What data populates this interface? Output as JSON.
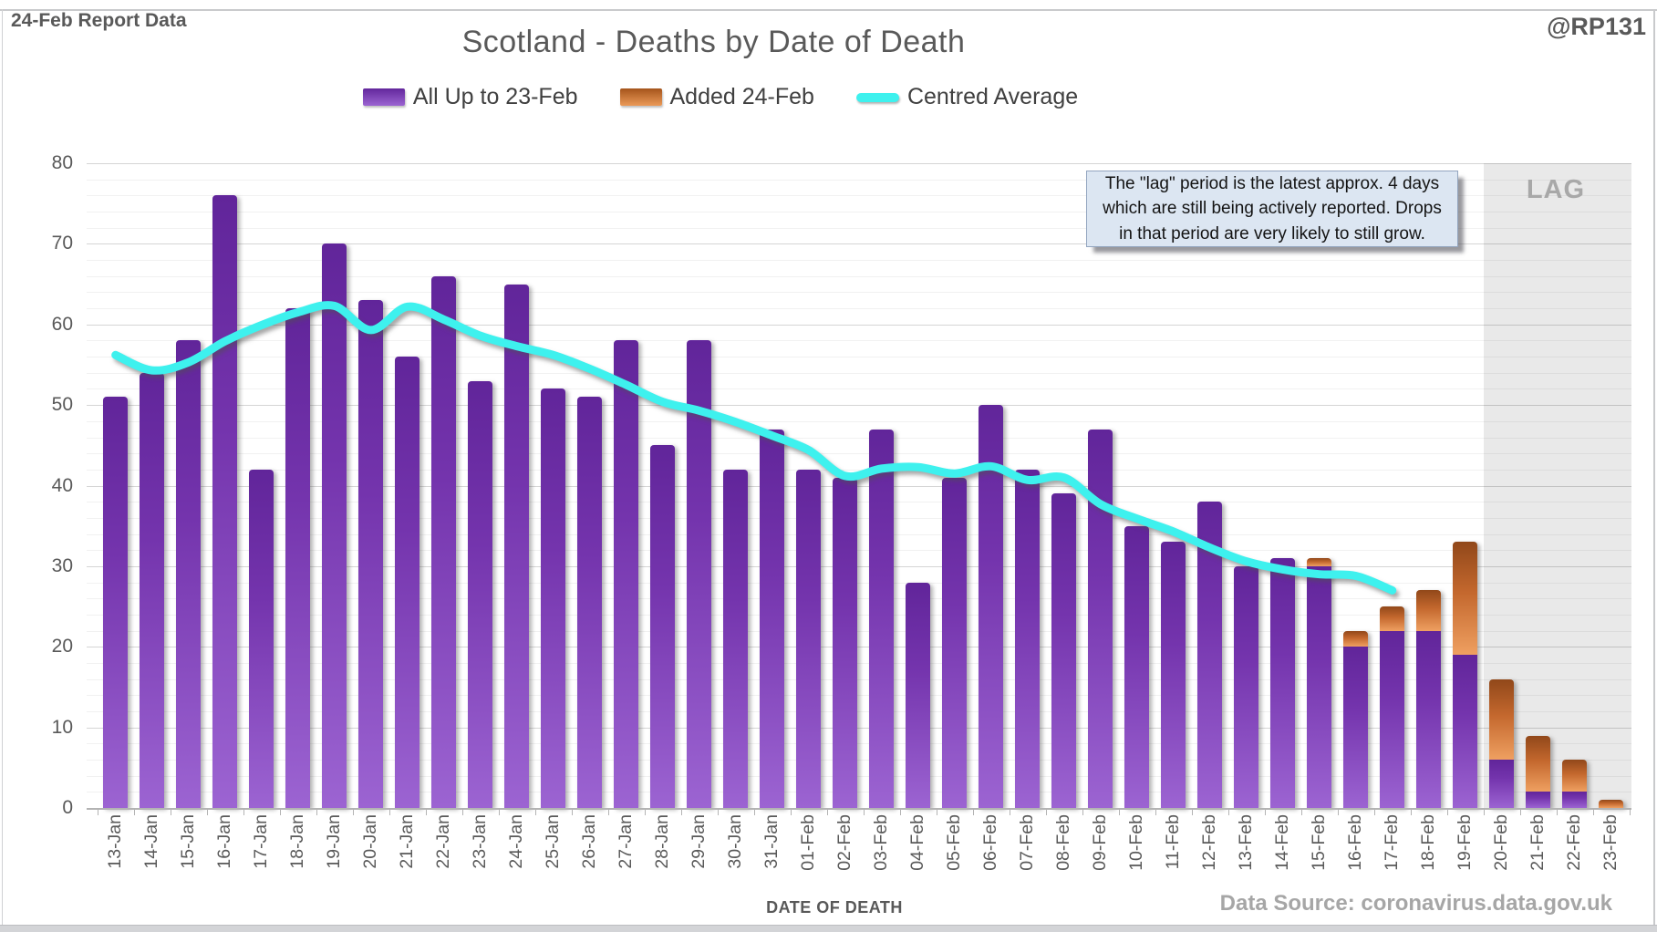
{
  "header": {
    "report_label": "24-Feb Report Data",
    "title": "Scotland - Deaths by Date of Death",
    "watermark": "@RP131"
  },
  "annotation": {
    "line1": "The \"lag\" period is the latest approx. 4 days",
    "line2": "which are still being actively reported. Drops",
    "line3": "in that period are very likely to still grow."
  },
  "x_axis_title": "DATE OF DEATH",
  "data_source": "Data Source: coronavirus.data.gov.uk",
  "colors": {
    "purple": "#7030a0",
    "orange": "#ed7d31",
    "cyan": "#3ef1ee",
    "text_gray": "#595959",
    "lag_band": "#e9e9e9"
  },
  "chart_data": {
    "type": "bar",
    "stacked": true,
    "title": "Scotland - Deaths by Date of Death",
    "xlabel": "DATE OF DEATH",
    "ylabel": "",
    "ylim": [
      0,
      80
    ],
    "y_ticks": [
      0,
      10,
      20,
      30,
      40,
      50,
      60,
      70,
      80
    ],
    "minor_grid_step": 2,
    "legend_position": "top",
    "categories": [
      "13-Jan",
      "14-Jan",
      "15-Jan",
      "16-Jan",
      "17-Jan",
      "18-Jan",
      "19-Jan",
      "20-Jan",
      "21-Jan",
      "22-Jan",
      "23-Jan",
      "24-Jan",
      "25-Jan",
      "26-Jan",
      "27-Jan",
      "28-Jan",
      "29-Jan",
      "30-Jan",
      "31-Jan",
      "01-Feb",
      "02-Feb",
      "03-Feb",
      "04-Feb",
      "05-Feb",
      "06-Feb",
      "07-Feb",
      "08-Feb",
      "09-Feb",
      "10-Feb",
      "11-Feb",
      "12-Feb",
      "13-Feb",
      "14-Feb",
      "15-Feb",
      "16-Feb",
      "17-Feb",
      "18-Feb",
      "19-Feb",
      "20-Feb",
      "21-Feb",
      "22-Feb",
      "23-Feb"
    ],
    "series": [
      {
        "name": "All Up to 23-Feb",
        "type": "bar",
        "color": "#7030a0",
        "values": [
          51,
          54,
          58,
          76,
          42,
          62,
          70,
          63,
          56,
          66,
          53,
          65,
          52,
          51,
          58,
          45,
          58,
          42,
          47,
          42,
          41,
          47,
          28,
          41,
          50,
          42,
          39,
          47,
          35,
          33,
          38,
          30,
          31,
          30,
          20,
          22,
          22,
          19,
          6,
          2,
          2,
          0
        ]
      },
      {
        "name": "Added 24-Feb",
        "type": "bar",
        "color": "#ed7d31",
        "values": [
          0,
          0,
          0,
          0,
          0,
          0,
          0,
          0,
          0,
          0,
          0,
          0,
          0,
          0,
          0,
          0,
          0,
          0,
          0,
          0,
          0,
          0,
          0,
          0,
          0,
          0,
          0,
          0,
          0,
          0,
          0,
          0,
          0,
          1,
          2,
          3,
          5,
          14,
          10,
          7,
          4,
          1
        ]
      },
      {
        "name": "Centred Average",
        "type": "line",
        "color": "#3ef1ee",
        "values": [
          56.2,
          54.3,
          55.3,
          57.9,
          59.9,
          61.5,
          62.3,
          59.3,
          62.2,
          60.6,
          58.6,
          57.3,
          56.2,
          54.5,
          52.5,
          50.4,
          49.3,
          47.9,
          46.2,
          44.4,
          41.2,
          42.1,
          42.3,
          41.5,
          42.4,
          40.7,
          41.0,
          37.7,
          35.9,
          34.3,
          32.3,
          30.6,
          29.6,
          29.0,
          28.8,
          27.0,
          null,
          null,
          null,
          null,
          null,
          null
        ]
      }
    ],
    "lag_band": {
      "start_category": "20-Feb",
      "label": "LAG"
    }
  }
}
